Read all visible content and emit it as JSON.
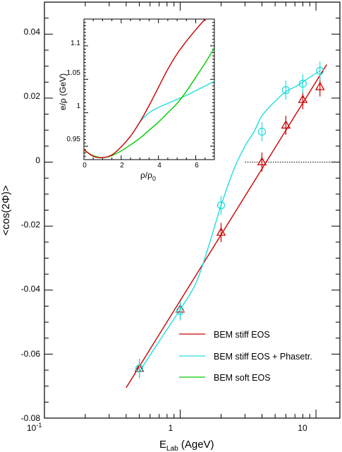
{
  "chart_data": [
    {
      "type": "scatter",
      "title": "",
      "xlabel": "E",
      "xlabel_sub": "Lab",
      "xlabel_unit": " (AgeV)",
      "ylabel": "<cos(2Φ)>",
      "xscale": "log",
      "xlim": [
        0.1,
        15
      ],
      "ylim": [
        -0.08,
        0.05
      ],
      "xticks": [
        {
          "value": 0.1,
          "base": "10",
          "exp": "-1"
        },
        {
          "value": 1,
          "label": "1"
        },
        {
          "value": 10,
          "label": "10"
        }
      ],
      "yticks": [
        {
          "value": -0.08,
          "label": "-0.08"
        },
        {
          "value": -0.06,
          "label": "-0.06"
        },
        {
          "value": -0.04,
          "label": "-0.04"
        },
        {
          "value": -0.02,
          "label": "-0.02"
        },
        {
          "value": 0,
          "label": "0"
        },
        {
          "value": 0.02,
          "label": "0.02"
        },
        {
          "value": 0.04,
          "label": "0.04"
        }
      ],
      "reference_line": {
        "y": 0,
        "style": "dotted",
        "x_from": 3
      },
      "legend_position": "bottom-right",
      "legend": [
        {
          "label": "BEM stiff EOS",
          "color": "#cc0000"
        },
        {
          "label": "BEM stiff EOS + Phasetr.",
          "color": "#22dddd"
        },
        {
          "label": "BEM soft EOS",
          "color": "#00cc00"
        }
      ],
      "series": [
        {
          "name": "BEM stiff EOS",
          "color": "#cc0000",
          "line_x": [
            0.4,
            12
          ],
          "line_y": [
            -0.0705,
            0.0305
          ],
          "marker": "triangle",
          "points": [
            {
              "x": 0.5,
              "y": -0.0645,
              "err": 0.003
            },
            {
              "x": 1,
              "y": -0.046,
              "err": 0.003
            },
            {
              "x": 2,
              "y": -0.022,
              "err": 0.003
            },
            {
              "x": 4,
              "y": 0.0,
              "err": 0.003
            },
            {
              "x": 6,
              "y": 0.0115,
              "err": 0.003
            },
            {
              "x": 8,
              "y": 0.0195,
              "err": 0.003
            },
            {
              "x": 10.7,
              "y": 0.0235,
              "err": 0.003
            }
          ]
        },
        {
          "name": "BEM stiff EOS + Phasetr.",
          "color": "#22dddd",
          "line_x": [
            0.5,
            0.7,
            1,
            1.3,
            1.6,
            2,
            2.5,
            3,
            3.5,
            4,
            5,
            6,
            7,
            8,
            9,
            10.7
          ],
          "line_y": [
            -0.0655,
            -0.056,
            -0.046,
            -0.038,
            -0.027,
            -0.0135,
            -0.002,
            0.005,
            0.0095,
            0.0145,
            0.019,
            0.022,
            0.0235,
            0.025,
            0.0265,
            0.0285
          ],
          "marker": "circle",
          "points": [
            {
              "x": 0.5,
              "y": -0.0645,
              "err": 0.003
            },
            {
              "x": 1,
              "y": -0.0465,
              "err": 0.003
            },
            {
              "x": 2,
              "y": -0.0135,
              "err": 0.003
            },
            {
              "x": 4,
              "y": 0.0095,
              "err": 0.003
            },
            {
              "x": 6,
              "y": 0.0225,
              "err": 0.003
            },
            {
              "x": 8,
              "y": 0.0245,
              "err": 0.003
            },
            {
              "x": 10.7,
              "y": 0.0285,
              "err": 0.003
            }
          ]
        },
        {
          "name": "BEM soft EOS",
          "color": "#00cc00",
          "line_x": [],
          "line_y": [],
          "marker": "none",
          "points": []
        }
      ]
    },
    {
      "type": "line",
      "title": "",
      "xlabel": "ρ/ρ",
      "xlabel_sub": "0",
      "ylabel": "e/ρ (GeV)",
      "xlim": [
        0,
        7
      ],
      "ylim": [
        0.93,
        1.14
      ],
      "xticks": [
        {
          "value": 0,
          "label": "0"
        },
        {
          "value": 2,
          "label": "2"
        },
        {
          "value": 4,
          "label": "4"
        },
        {
          "value": 6,
          "label": "6"
        }
      ],
      "yticks": [
        {
          "value": 0.95,
          "label": "0.95"
        },
        {
          "value": 1.0,
          "label": "1"
        },
        {
          "value": 1.05,
          "label": "1.05"
        },
        {
          "value": 1.1,
          "label": "1.1"
        }
      ],
      "series": [
        {
          "name": "BEM stiff EOS",
          "color": "#cc0000",
          "x": [
            0,
            0.5,
            1,
            1.5,
            2,
            2.5,
            3,
            3.5,
            4,
            4.5,
            5,
            5.5,
            6,
            6.5
          ],
          "y": [
            0.945,
            0.935,
            0.933,
            0.937,
            0.949,
            0.965,
            0.986,
            1.011,
            1.038,
            1.065,
            1.088,
            1.107,
            1.124,
            1.14
          ]
        },
        {
          "name": "BEM stiff EOS + Phasetr.",
          "color": "#22dddd",
          "x": [
            2.6,
            3,
            3.5,
            4,
            4.5,
            5,
            5.5,
            6,
            6.5,
            7
          ],
          "y": [
            0.968,
            0.986,
            1.0,
            1.008,
            1.014,
            1.02,
            1.026,
            1.033,
            1.04,
            1.047
          ]
        },
        {
          "name": "BEM soft EOS",
          "color": "#00cc00",
          "x": [
            0,
            0.5,
            1,
            1.5,
            2,
            2.5,
            3,
            3.5,
            4,
            4.5,
            5,
            5.5,
            6,
            6.5,
            7
          ],
          "y": [
            0.944,
            0.936,
            0.933,
            0.936,
            0.943,
            0.952,
            0.962,
            0.974,
            0.986,
            1.0,
            1.014,
            1.032,
            1.053,
            1.074,
            1.097
          ]
        }
      ]
    }
  ]
}
